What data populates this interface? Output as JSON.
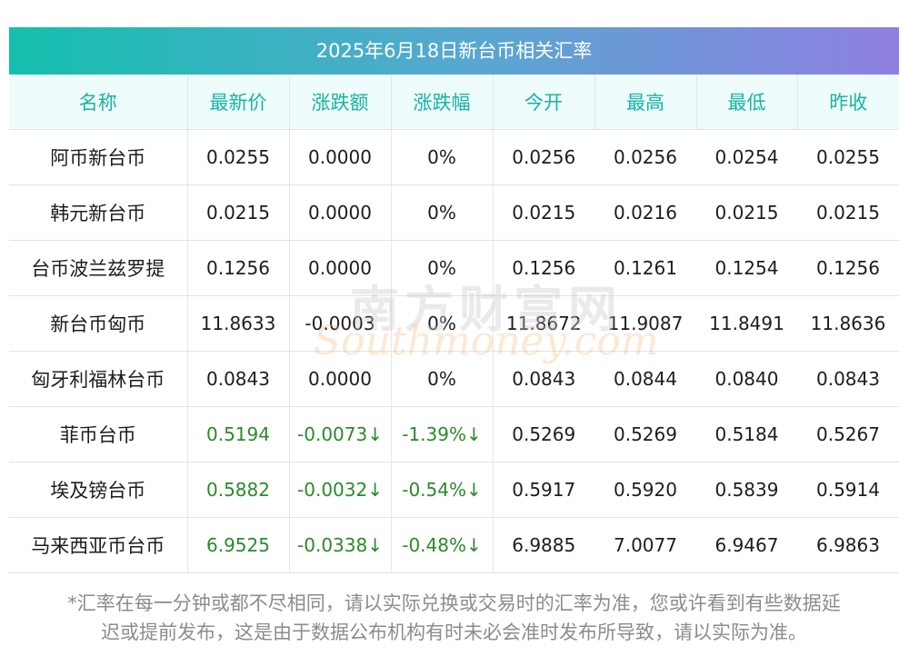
{
  "title": "2025年6月18日新台币相关汇率",
  "headers": [
    "名称",
    "最新价",
    "涨跌额",
    "涨跌幅",
    "今开",
    "最高",
    "最低",
    "昨收"
  ],
  "rows": [
    {
      "name": "阿币新台币",
      "latest": "0.0255",
      "change": "0.0000",
      "pct": "0%",
      "open": "0.0256",
      "high": "0.0256",
      "low": "0.0254",
      "prev": "0.0255",
      "down": false
    },
    {
      "name": "韩元新台币",
      "latest": "0.0215",
      "change": "0.0000",
      "pct": "0%",
      "open": "0.0215",
      "high": "0.0216",
      "low": "0.0215",
      "prev": "0.0215",
      "down": false
    },
    {
      "name": "台币波兰兹罗提",
      "latest": "0.1256",
      "change": "0.0000",
      "pct": "0%",
      "open": "0.1256",
      "high": "0.1261",
      "low": "0.1254",
      "prev": "0.1256",
      "down": false
    },
    {
      "name": "新台币匈币",
      "latest": "11.8633",
      "change": "-0.0003",
      "pct": "0%",
      "open": "11.8672",
      "high": "11.9087",
      "low": "11.8491",
      "prev": "11.8636",
      "down": false
    },
    {
      "name": "匈牙利福林台币",
      "latest": "0.0843",
      "change": "0.0000",
      "pct": "0%",
      "open": "0.0843",
      "high": "0.0844",
      "low": "0.0840",
      "prev": "0.0843",
      "down": false
    },
    {
      "name": "菲币台币",
      "latest": "0.5194",
      "change": "-0.0073↓",
      "pct": "-1.39%↓",
      "open": "0.5269",
      "high": "0.5269",
      "low": "0.5184",
      "prev": "0.5267",
      "down": true
    },
    {
      "name": "埃及镑台币",
      "latest": "0.5882",
      "change": "-0.0032↓",
      "pct": "-0.54%↓",
      "open": "0.5917",
      "high": "0.5920",
      "low": "0.5839",
      "prev": "0.5914",
      "down": true
    },
    {
      "name": "马来西亚币台币",
      "latest": "6.9525",
      "change": "-0.0338↓",
      "pct": "-0.48%↓",
      "open": "6.9885",
      "high": "7.0077",
      "low": "6.9467",
      "prev": "6.9863",
      "down": true
    }
  ],
  "footer": {
    "line1": "*汇率在每一分钟或都不尽相同，请以实际兑换或交易时的汇率为准，您或许看到有些数据延",
    "line2": "迟或提前发布，这是由于数据公布机构有时未必会准时发布所导致，请以实际为准。"
  },
  "watermark": {
    "cn": "南方财富网",
    "en": "Southmoney.com"
  },
  "colors": {
    "title_gradient_start": "#14bfae",
    "title_gradient_end": "#8f7fe1",
    "header_text": "#17b3a5",
    "header_bg": "#eefcfb",
    "down": "#2a8a2a"
  }
}
